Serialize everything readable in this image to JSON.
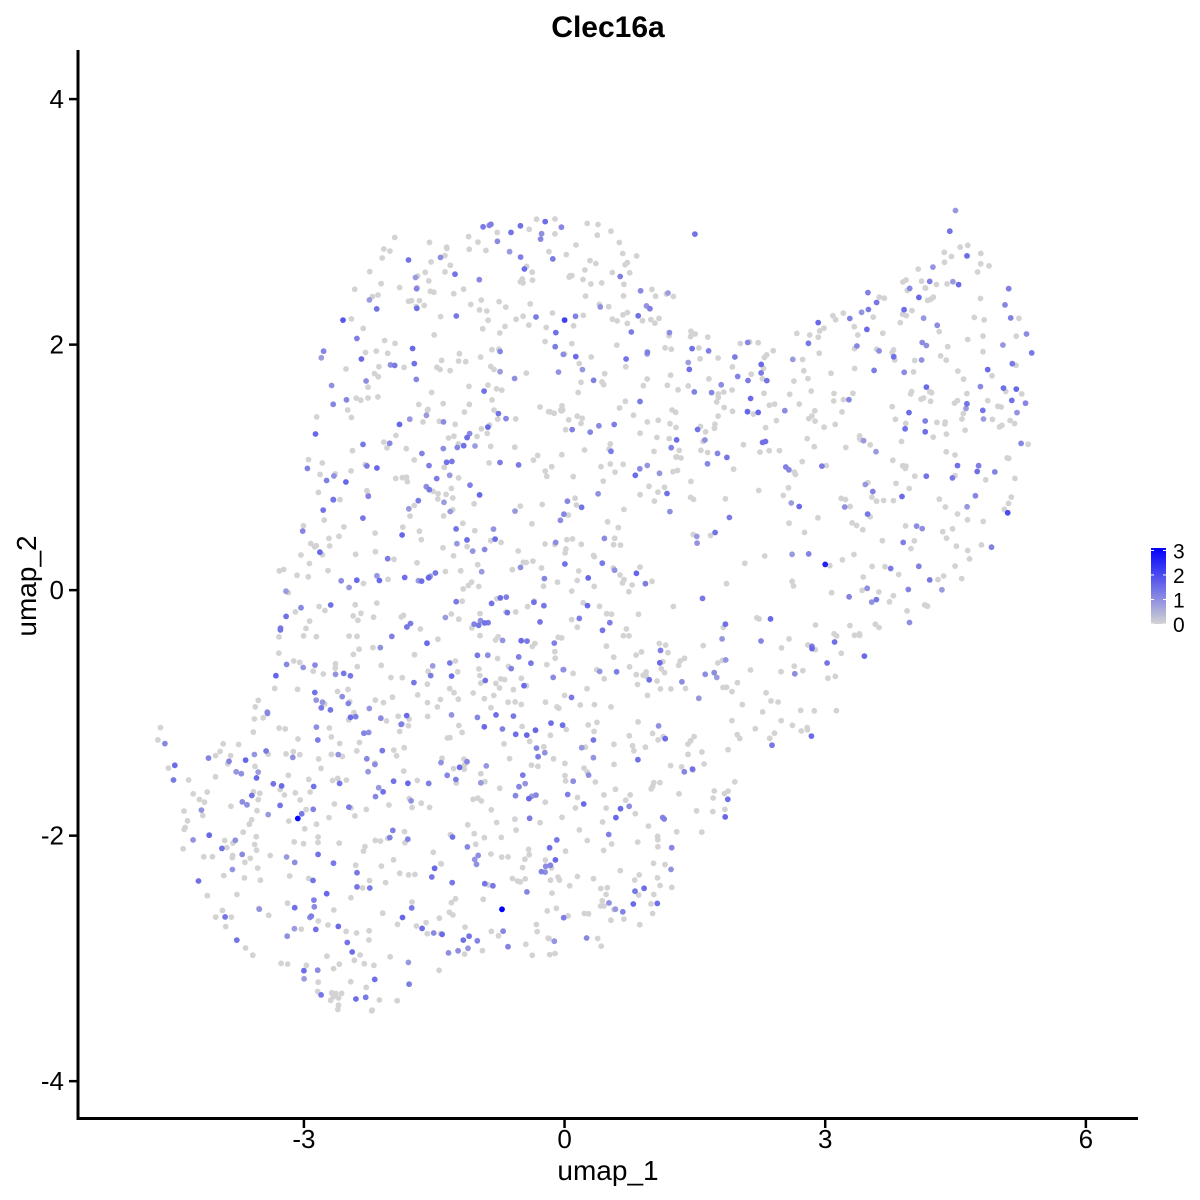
{
  "chart_data": {
    "type": "scatter",
    "title": "Clec16a",
    "xlabel": "umap_1",
    "ylabel": "umap_2",
    "xlim": [
      -5.6,
      6.6
    ],
    "ylim": [
      -4.3,
      4.4
    ],
    "x_ticks": [
      "-3",
      "0",
      "3",
      "6"
    ],
    "x_tick_values": [
      -3,
      0,
      3,
      6
    ],
    "y_ticks": [
      "4",
      "2",
      "0",
      "-2",
      "-4"
    ],
    "y_tick_values": [
      4,
      2,
      0,
      -2,
      -4
    ],
    "grid": false,
    "legend": {
      "position": "right",
      "type": "colorbar",
      "labels": [
        "3",
        "2",
        "1",
        "0"
      ],
      "values": [
        3,
        2,
        1,
        0
      ],
      "min": 0,
      "max": 3.1
    },
    "colors": {
      "low": "#d3d3d3",
      "high": "#0000ff"
    },
    "highlight_points": [
      {
        "x": -3.07,
        "y": -1.86,
        "expression": 3.0
      },
      {
        "x": -0.72,
        "y": -2.6,
        "expression": 3.1
      },
      {
        "x": 3.0,
        "y": 0.21,
        "expression": 2.6
      },
      {
        "x": 0.0,
        "y": 2.2,
        "expression": 2.2
      },
      {
        "x": -2.55,
        "y": 2.2,
        "expression": 1.8
      },
      {
        "x": 5.1,
        "y": 0.63,
        "expression": 2.0
      },
      {
        "x": -1.9,
        "y": 1.35,
        "expression": 1.6
      },
      {
        "x": -1.3,
        "y": -0.7,
        "expression": 1.5
      },
      {
        "x": 1.5,
        "y": 2.9,
        "expression": 1.4
      },
      {
        "x": -3.0,
        "y": -3.1,
        "expression": 1.5
      }
    ]
  }
}
